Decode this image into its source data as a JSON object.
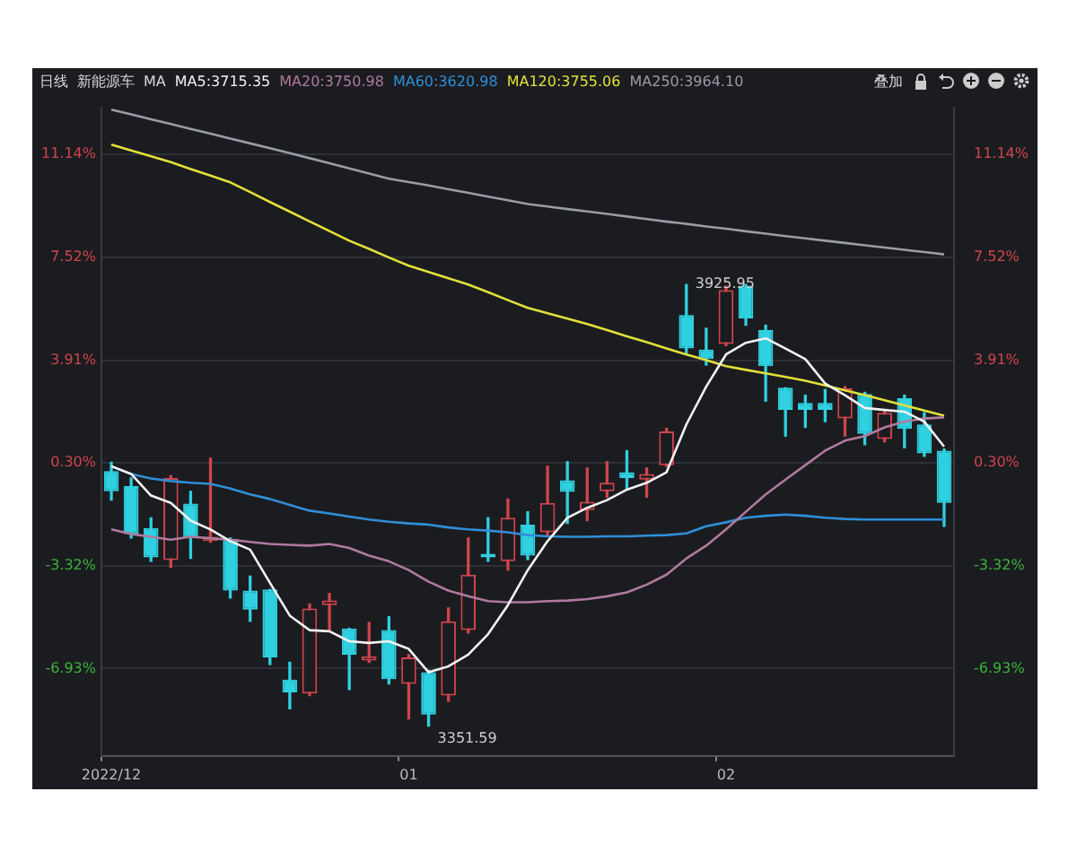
{
  "chart_data": {
    "type": "candlestick",
    "title": "新能源车",
    "subtitle": "日线",
    "legend_title": "MA",
    "legend": "top",
    "grid": "y",
    "categories": [
      "2022/12",
      null,
      null,
      null,
      null,
      null,
      null,
      null,
      null,
      null,
      null,
      null,
      null,
      null,
      null,
      "01",
      null,
      null,
      null,
      null,
      null,
      null,
      null,
      null,
      null,
      null,
      null,
      null,
      null,
      null,
      null,
      "02",
      null,
      null,
      null,
      null,
      null,
      null,
      null,
      null,
      null,
      null,
      null
    ],
    "ohlc": [
      [
        0.01,
        0.32,
        -1.01,
        -0.7
      ],
      [
        -0.52,
        -0.23,
        -2.34,
        -2.2
      ],
      [
        -1.99,
        -1.63,
        -3.16,
        -3.02
      ],
      [
        -3.12,
        -0.15,
        -3.37,
        -0.23
      ],
      [
        -1.13,
        -0.7,
        -3.06,
        -2.34
      ],
      [
        -2.45,
        0.46,
        -2.49,
        -2.3
      ],
      [
        -2.38,
        -2.34,
        -4.45,
        -4.19
      ],
      [
        -4.19,
        -3.68,
        -5.27,
        -4.86
      ],
      [
        -4.15,
        -4.15,
        -6.79,
        -6.54
      ],
      [
        -7.32,
        -6.71,
        -8.35,
        -7.77
      ],
      [
        -7.81,
        -4.66,
        -7.88,
        -4.82
      ],
      [
        -4.7,
        -4.29,
        -5.62,
        -4.54
      ],
      [
        -5.52,
        -5.52,
        -7.67,
        -6.44
      ],
      [
        -6.65,
        -5.31,
        -6.71,
        -6.5
      ],
      [
        -5.58,
        -5.11,
        -7.47,
        -7.3
      ],
      [
        -7.47,
        -6.44,
        -8.7,
        -6.54
      ],
      [
        -7.06,
        -6.99,
        -8.95,
        -8.55
      ],
      [
        -7.88,
        -4.8,
        -8.08,
        -5.27
      ],
      [
        -5.58,
        -2.34,
        -5.68,
        -3.63
      ],
      [
        -2.9,
        -1.63,
        -3.16,
        -3.02
      ],
      [
        -3.16,
        -0.97,
        -3.47,
        -1.63
      ],
      [
        -1.87,
        -1.42,
        -3.1,
        -2.96
      ],
      [
        -2.14,
        0.18,
        -2.24,
        -1.11
      ],
      [
        -0.31,
        0.34,
        -1.83,
        -0.72
      ],
      [
        -1.36,
        0.12,
        -1.73,
        -1.07
      ],
      [
        -0.7,
        0.34,
        -0.91,
        -0.4
      ],
      [
        -0.03,
        0.73,
        -0.6,
        -0.23
      ],
      [
        -0.29,
        0.12,
        -0.91,
        -0.09
      ],
      [
        0.22,
        1.51,
        0.18,
        1.41
      ],
      [
        5.5,
        6.57,
        4.11,
        4.32
      ],
      [
        4.28,
        5.03,
        3.74,
        3.95
      ],
      [
        4.48,
        6.51,
        4.42,
        6.37
      ],
      [
        6.53,
        6.57,
        5.14,
        5.38
      ],
      [
        4.97,
        5.14,
        2.47,
        3.7
      ],
      [
        2.94,
        2.94,
        1.24,
        2.16
      ],
      [
        2.41,
        2.68,
        1.55,
        2.16
      ],
      [
        2.41,
        2.88,
        1.75,
        2.16
      ],
      [
        1.86,
        2.98,
        1.24,
        2.92
      ],
      [
        2.72,
        2.78,
        0.94,
        1.32
      ],
      [
        1.14,
        2.16,
        1.04,
        2.06
      ],
      [
        2.57,
        2.68,
        0.83,
        1.49
      ],
      [
        1.65,
        2.06,
        0.53,
        0.63
      ],
      [
        0.73,
        0.79,
        -1.93,
        -1.11
      ]
    ],
    "colors": [
      "#2fd0e0",
      "#2fd0e0",
      "#2fd0e0",
      "#d0454c",
      "#2fd0e0",
      "#d0454c",
      "#2fd0e0",
      "#2fd0e0",
      "#2fd0e0",
      "#2fd0e0",
      "#d0454c",
      "#d0454c",
      "#2fd0e0",
      "#d0454c",
      "#2fd0e0",
      "#d0454c",
      "#2fd0e0",
      "#d0454c",
      "#d0454c",
      "#2fd0e0",
      "#d0454c",
      "#2fd0e0",
      "#d0454c",
      "#2fd0e0",
      "#d0454c",
      "#d0454c",
      "#2fd0e0",
      "#d0454c",
      "#d0454c",
      "#2fd0e0",
      "#2fd0e0",
      "#d0454c",
      "#2fd0e0",
      "#2fd0e0",
      "#2fd0e0",
      "#2fd0e0",
      "#2fd0e0",
      "#d0454c",
      "#2fd0e0",
      "#d0454c",
      "#2fd0e0",
      "#2fd0e0",
      "#2fd0e0"
    ],
    "series": [
      {
        "name": "MA5:3715.35",
        "type": "line",
        "color": "#f2f2f2",
        "values": [
          0.18,
          -0.09,
          -0.85,
          -1.11,
          -1.73,
          -2.04,
          -2.45,
          -2.75,
          -3.92,
          -5.07,
          -5.58,
          -5.62,
          -5.97,
          -6.03,
          -5.97,
          -6.24,
          -7.06,
          -6.85,
          -6.44,
          -5.72,
          -4.7,
          -3.47,
          -2.45,
          -1.63,
          -1.28,
          -1.01,
          -0.64,
          -0.4,
          -0.03,
          1.65,
          2.98,
          4.11,
          4.52,
          4.68,
          4.32,
          3.95,
          3.09,
          2.68,
          2.23,
          2.16,
          2.1,
          1.75,
          0.87
        ]
      },
      {
        "name": "MA20:3750.98",
        "type": "line",
        "color": "#b07a9e",
        "values": [
          -2.04,
          -2.2,
          -2.3,
          -2.4,
          -2.3,
          -2.35,
          -2.4,
          -2.48,
          -2.55,
          -2.58,
          -2.61,
          -2.55,
          -2.69,
          -2.96,
          -3.16,
          -3.47,
          -3.88,
          -4.19,
          -4.39,
          -4.56,
          -4.6,
          -4.6,
          -4.56,
          -4.54,
          -4.49,
          -4.39,
          -4.25,
          -3.98,
          -3.63,
          -3.06,
          -2.61,
          -2.04,
          -1.42,
          -0.81,
          -0.29,
          0.22,
          0.73,
          1.08,
          1.24,
          1.55,
          1.75,
          1.86,
          1.9
        ]
      },
      {
        "name": "MA60:3620.98",
        "type": "line",
        "color": "#2f8fd8",
        "values": [
          0.18,
          -0.09,
          -0.25,
          -0.34,
          -0.4,
          -0.44,
          -0.6,
          -0.81,
          -0.97,
          -1.18,
          -1.38,
          -1.48,
          -1.59,
          -1.69,
          -1.77,
          -1.83,
          -1.87,
          -1.97,
          -2.04,
          -2.08,
          -2.14,
          -2.24,
          -2.28,
          -2.3,
          -2.3,
          -2.28,
          -2.28,
          -2.26,
          -2.24,
          -2.18,
          -1.93,
          -1.79,
          -1.63,
          -1.56,
          -1.52,
          -1.56,
          -1.63,
          -1.67,
          -1.69,
          -1.69,
          -1.69,
          -1.69,
          -1.69
        ]
      },
      {
        "name": "MA120:3755.06",
        "type": "line",
        "color": "#e2e03a",
        "values": [
          11.49,
          11.28,
          11.08,
          10.87,
          10.63,
          10.4,
          10.16,
          9.82,
          9.47,
          9.13,
          8.79,
          8.45,
          8.11,
          7.82,
          7.52,
          7.23,
          7.01,
          6.79,
          6.57,
          6.3,
          6.02,
          5.75,
          5.56,
          5.37,
          5.18,
          4.97,
          4.75,
          4.54,
          4.32,
          4.11,
          3.91,
          3.7,
          3.57,
          3.45,
          3.32,
          3.19,
          3.02,
          2.85,
          2.68,
          2.5,
          2.32,
          2.14,
          1.96
        ]
      },
      {
        "name": "MA250:3964.10",
        "type": "line",
        "color": "#9a9ca6",
        "values": [
          12.72,
          12.55,
          12.38,
          12.21,
          12.04,
          11.87,
          11.7,
          11.53,
          11.36,
          11.19,
          11.01,
          10.83,
          10.65,
          10.47,
          10.29,
          10.17,
          10.05,
          9.92,
          9.79,
          9.66,
          9.53,
          9.4,
          9.31,
          9.22,
          9.14,
          9.05,
          8.96,
          8.87,
          8.78,
          8.7,
          8.61,
          8.53,
          8.44,
          8.36,
          8.27,
          8.19,
          8.11,
          8.03,
          7.95,
          7.87,
          7.79,
          7.71,
          7.63
        ]
      }
    ],
    "ylim": [
      -10.0,
      12.8
    ],
    "yticks": [
      {
        "value": 11.14,
        "label": "11.14%"
      },
      {
        "value": 7.52,
        "label": "7.52%"
      },
      {
        "value": 3.91,
        "label": "3.91%"
      },
      {
        "value": 0.3,
        "label": "0.30%"
      },
      {
        "value": -3.32,
        "label": "-3.32%"
      },
      {
        "value": -6.93,
        "label": "-6.93%"
      }
    ],
    "y2lim": [
      -10.0,
      12.8
    ],
    "y2ticks": [
      {
        "value": 11.14,
        "label": "11.14%"
      },
      {
        "value": 7.52,
        "label": "7.52%"
      },
      {
        "value": 3.91,
        "label": "3.91%"
      },
      {
        "value": 0.3,
        "label": "0.30%"
      },
      {
        "value": -3.32,
        "label": "-3.32%"
      },
      {
        "value": -6.93,
        "label": "-6.93%"
      }
    ],
    "annotations": [
      {
        "text": "3925.95",
        "y": 6.57
      },
      "3351.59",
      "叠加"
    ]
  }
}
